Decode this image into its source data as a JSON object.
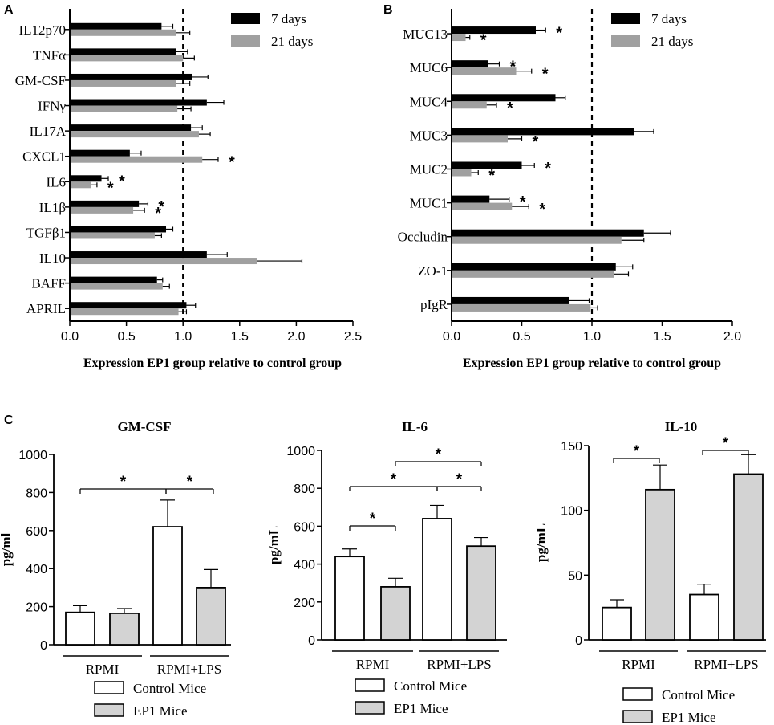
{
  "panel_labels": {
    "a": "A",
    "b": "B",
    "c": "C"
  },
  "chart_data": [
    {
      "panel": "A",
      "type": "bar",
      "orientation": "horizontal",
      "categories": [
        "IL12p70",
        "TNFα",
        "GM-CSF",
        "IFNγ",
        "IL17A",
        "CXCL1",
        "IL6",
        "IL1β",
        "TGFβ1",
        "IL10",
        "BAFF",
        "APRIL"
      ],
      "series": [
        {
          "name": "7 days",
          "color": "#000000",
          "values": [
            0.81,
            0.94,
            1.08,
            1.21,
            1.07,
            0.53,
            0.28,
            0.61,
            0.85,
            1.21,
            0.77,
            1.03
          ],
          "errors": [
            0.1,
            0.1,
            0.14,
            0.15,
            0.1,
            0.1,
            0.06,
            0.08,
            0.06,
            0.18,
            0.05,
            0.08
          ],
          "stars": [
            false,
            false,
            false,
            false,
            false,
            false,
            true,
            true,
            false,
            false,
            false,
            false
          ]
        },
        {
          "name": "21 days",
          "color": "#a0a0a0",
          "values": [
            0.94,
            1.0,
            0.94,
            0.95,
            1.14,
            1.17,
            0.19,
            0.56,
            0.75,
            1.65,
            0.82,
            0.96
          ],
          "errors": [
            0.12,
            0.1,
            0.12,
            0.12,
            0.1,
            0.14,
            0.05,
            0.1,
            0.06,
            0.4,
            0.06,
            0.07
          ],
          "stars": [
            false,
            false,
            false,
            false,
            false,
            true,
            true,
            true,
            false,
            false,
            false,
            false
          ]
        }
      ],
      "star_label": "*",
      "reference_line": 1.0,
      "xlim": [
        0.0,
        2.5
      ],
      "xticks": [
        "0.0",
        "0.5",
        "1.0",
        "1.5",
        "2.0",
        "2.5"
      ],
      "xlabel": "Expression EP1 group relative to control group",
      "legend": [
        "7 days",
        "21 days"
      ],
      "legend_position": "top-right"
    },
    {
      "panel": "B",
      "type": "bar",
      "orientation": "horizontal",
      "categories": [
        "MUC13",
        "MUC6",
        "MUC4",
        "MUC3",
        "MUC2",
        "MUC1",
        "Occludin",
        "ZO-1",
        "pIgR"
      ],
      "series": [
        {
          "name": "7 days",
          "color": "#000000",
          "values": [
            0.6,
            0.26,
            0.74,
            1.3,
            0.5,
            0.27,
            1.37,
            1.17,
            0.84
          ],
          "errors": [
            0.07,
            0.08,
            0.07,
            0.14,
            0.09,
            0.14,
            0.19,
            0.12,
            0.14
          ],
          "stars": [
            true,
            true,
            false,
            false,
            true,
            true,
            false,
            false,
            false
          ]
        },
        {
          "name": "21 days",
          "color": "#a0a0a0",
          "values": [
            0.1,
            0.46,
            0.25,
            0.4,
            0.14,
            0.43,
            1.21,
            1.16,
            0.99
          ],
          "errors": [
            0.03,
            0.11,
            0.07,
            0.1,
            0.05,
            0.12,
            0.16,
            0.1,
            0.05
          ],
          "stars": [
            true,
            true,
            true,
            true,
            true,
            true,
            false,
            false,
            false
          ]
        }
      ],
      "star_label": "*",
      "reference_line": 1.0,
      "xlim": [
        0.0,
        2.0
      ],
      "xticks": [
        "0.0",
        "0.5",
        "1.0",
        "1.5",
        "2.0"
      ],
      "xlabel": "Expression EP1 group relative to control group",
      "legend": [
        "7 days",
        "21 days"
      ],
      "legend_position": "top-right"
    },
    {
      "panel": "C",
      "type": "bar",
      "title": "GM-CSF",
      "ylabel": "pg/ml",
      "ylim": [
        0,
        1000
      ],
      "yticks": [
        "0",
        "200",
        "400",
        "600",
        "800",
        "1000"
      ],
      "groups": [
        "RPMI",
        "RPMI+LPS"
      ],
      "series": [
        {
          "name": "Control Mice",
          "color": "#ffffff",
          "values": [
            170,
            620
          ],
          "errors": [
            35,
            140
          ]
        },
        {
          "name": "EP1 Mice",
          "color": "#d3d3d3",
          "values": [
            165,
            300
          ],
          "errors": [
            25,
            95
          ]
        }
      ],
      "significance": [
        "*",
        "*"
      ],
      "legend": [
        "Control Mice",
        "EP1 Mice"
      ]
    },
    {
      "panel": "C",
      "type": "bar",
      "title": "IL-6",
      "ylabel": "pg/mL",
      "ylim": [
        0,
        1000
      ],
      "yticks": [
        "0",
        "200",
        "400",
        "600",
        "800",
        "1000"
      ],
      "groups": [
        "RPMI",
        "RPMI+LPS"
      ],
      "series": [
        {
          "name": "Control Mice",
          "color": "#ffffff",
          "values": [
            440,
            640
          ],
          "errors": [
            40,
            70
          ]
        },
        {
          "name": "EP1 Mice",
          "color": "#d3d3d3",
          "values": [
            280,
            495
          ],
          "errors": [
            45,
            45
          ]
        }
      ],
      "significance": [
        "*",
        "*",
        "*",
        "*"
      ],
      "legend": [
        "Control Mice",
        "EP1 Mice"
      ]
    },
    {
      "panel": "C",
      "type": "bar",
      "title": "IL-10",
      "ylabel": "pg/mL",
      "ylim": [
        0,
        150
      ],
      "yticks": [
        "0",
        "50",
        "100",
        "150"
      ],
      "groups": [
        "RPMI",
        "RPMI+LPS"
      ],
      "series": [
        {
          "name": "Control Mice",
          "color": "#ffffff",
          "values": [
            25,
            35
          ],
          "errors": [
            6,
            8
          ]
        },
        {
          "name": "EP1 Mice",
          "color": "#d3d3d3",
          "values": [
            116,
            128
          ],
          "errors": [
            19,
            15
          ]
        }
      ],
      "significance": [
        "*",
        "*"
      ],
      "legend": [
        "Control Mice",
        "EP1 Mice"
      ]
    }
  ]
}
